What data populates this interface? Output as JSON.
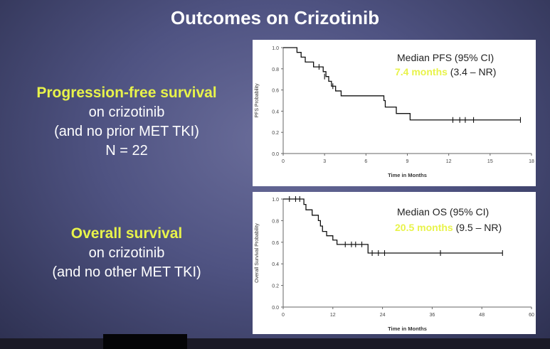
{
  "slide": {
    "title": "Outcomes on Crizotinib"
  },
  "left_panels": {
    "pfs": {
      "heading": "Progression-free survival",
      "line1": "on crizotinib",
      "line2": "(and no prior MET TKI)",
      "line3": "N = 22"
    },
    "os": {
      "heading": "Overall survival",
      "line1": "on crizotinib",
      "line2": "(and no other MET TKI)"
    }
  },
  "colors": {
    "highlight": "#e8f34a",
    "plot_bg": "#ffffff",
    "curve": "#111111"
  },
  "chart_data": [
    {
      "type": "line",
      "title": "Median PFS (95% CI)",
      "median_value": "7.4 months",
      "median_ci": "(3.4 – NR)",
      "xlabel": "Time in Months",
      "ylabel": "PFS Probability",
      "xlim": [
        0,
        18
      ],
      "ylim": [
        0,
        1
      ],
      "xticks": [
        0,
        3,
        6,
        9,
        12,
        15,
        18
      ],
      "yticks": [
        0,
        0.2,
        0.4,
        0.6,
        0.8,
        1.0
      ],
      "ytick_labels": [
        "0.0",
        "0.2",
        "0.4",
        "0.6",
        "0.8",
        "1.0"
      ],
      "steps": [
        [
          0,
          1.0
        ],
        [
          1.0,
          0.955
        ],
        [
          1.3,
          0.91
        ],
        [
          1.6,
          0.864
        ],
        [
          2.2,
          0.818
        ],
        [
          2.9,
          0.773
        ],
        [
          3.1,
          0.727
        ],
        [
          3.3,
          0.682
        ],
        [
          3.5,
          0.636
        ],
        [
          3.8,
          0.591
        ],
        [
          4.2,
          0.545
        ],
        [
          7.3,
          0.5
        ],
        [
          7.4,
          0.439
        ],
        [
          8.2,
          0.378
        ],
        [
          9.2,
          0.317
        ],
        [
          17.2,
          0.317
        ]
      ],
      "censor_x": [
        2.6,
        3.0,
        3.6,
        12.3,
        12.8,
        13.2,
        13.8,
        17.2
      ],
      "censor_y": [
        0.818,
        0.727,
        0.636,
        0.317,
        0.317,
        0.317,
        0.317,
        0.317
      ]
    },
    {
      "type": "line",
      "title": "Median OS (95% CI)",
      "median_value": "20.5 months",
      "median_ci": "(9.5 – NR)",
      "xlabel": "Time in Months",
      "ylabel": "Overall Survival Probability",
      "xlim": [
        0,
        60
      ],
      "ylim": [
        0,
        1
      ],
      "xticks": [
        0,
        12,
        24,
        36,
        48,
        60
      ],
      "yticks": [
        0,
        0.2,
        0.4,
        0.6,
        0.8,
        1.0
      ],
      "ytick_labels": [
        "0.0",
        "0.2",
        "0.4",
        "0.6",
        "0.8",
        "1.0"
      ],
      "steps": [
        [
          0,
          1.0
        ],
        [
          5,
          0.95
        ],
        [
          5.5,
          0.9
        ],
        [
          7,
          0.85
        ],
        [
          8.5,
          0.8
        ],
        [
          9,
          0.75
        ],
        [
          9.5,
          0.7
        ],
        [
          10.5,
          0.66
        ],
        [
          12,
          0.62
        ],
        [
          13,
          0.58
        ],
        [
          20.5,
          0.5
        ],
        [
          53,
          0.5
        ]
      ],
      "censor_x": [
        1.5,
        3,
        4,
        15,
        16.5,
        17.5,
        19,
        21.5,
        23,
        24.5,
        38,
        53
      ],
      "censor_y": [
        1.0,
        1.0,
        1.0,
        0.58,
        0.58,
        0.58,
        0.58,
        0.5,
        0.5,
        0.5,
        0.5,
        0.5
      ]
    }
  ]
}
